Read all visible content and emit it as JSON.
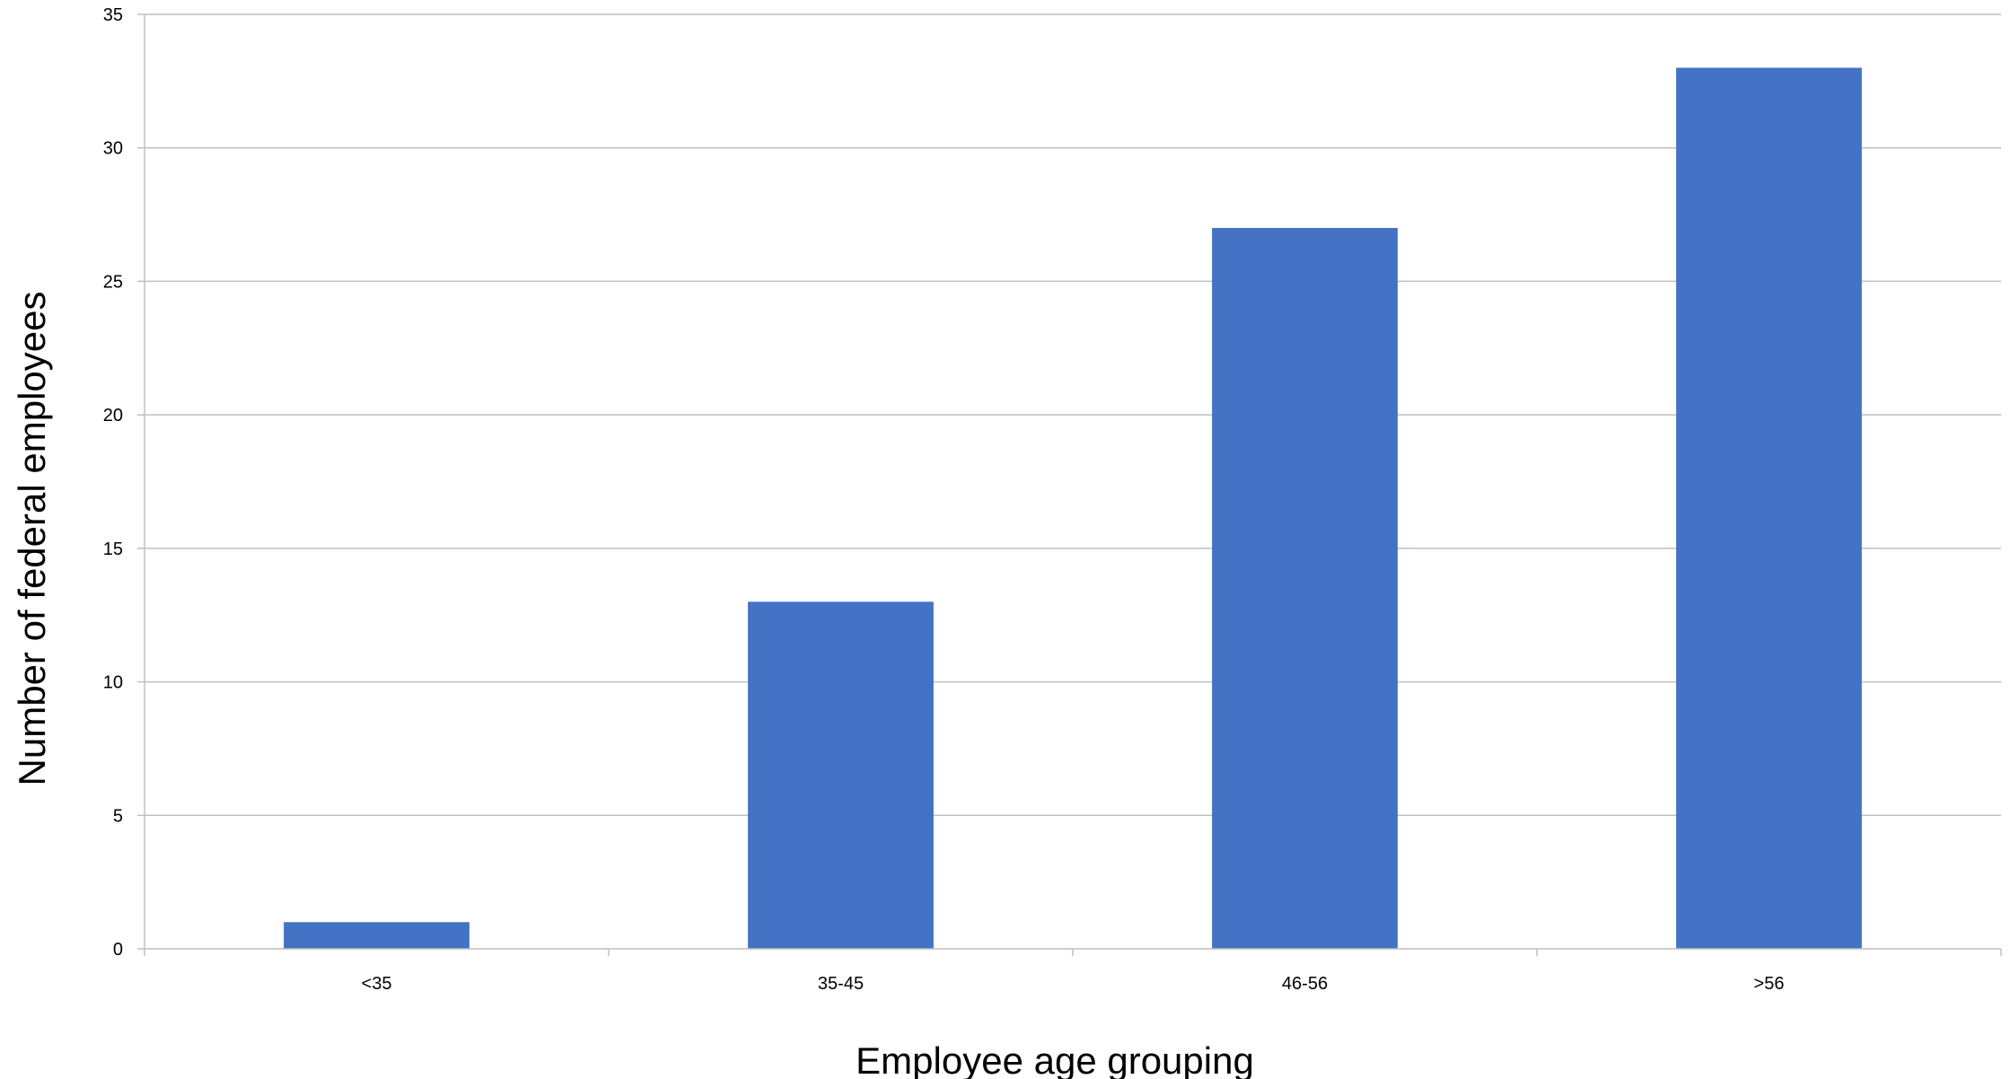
{
  "chart_data": {
    "type": "bar",
    "title": "",
    "xlabel": "Employee age grouping",
    "ylabel": "Number of federal employees",
    "categories": [
      "<35",
      "35-45",
      "46-56",
      ">56"
    ],
    "values": [
      1,
      13,
      27,
      33
    ],
    "ylim": [
      0,
      35
    ],
    "yticks": [
      0,
      5,
      10,
      15,
      20,
      25,
      30,
      35
    ],
    "ytick_labels": [
      "0",
      "5",
      "10",
      "15",
      "20",
      "25",
      "30",
      "35"
    ],
    "grid": true,
    "legend": "none",
    "colors": {
      "bar": "#4472C4",
      "grid": "#BFBFBF",
      "axis": "#BFBFBF"
    }
  }
}
